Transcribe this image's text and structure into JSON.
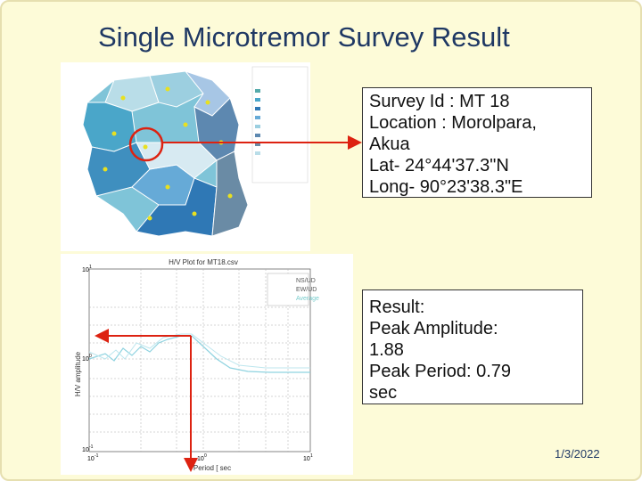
{
  "header": {
    "title": "Single Microtremor Survey Result"
  },
  "survey_box": {
    "lines": [
      "Survey Id : MT 18",
      "Location : Morolpara,",
      "Akua",
      "Lat-  24°44'37.3\"N",
      "Long-  90°23'38.3\"E"
    ]
  },
  "result_box": {
    "lines": [
      "Result:",
      "Peak Amplitude:",
      "1.88",
      "Peak Period: 0.79",
      "sec"
    ]
  },
  "plot": {
    "title": "H/V Plot for MT18.csv",
    "y_label": "H/V amplitude",
    "x_label": "Period [ sec",
    "legend": [
      "NS/UD",
      "EW/UD",
      "Average"
    ],
    "y_ticks": [
      {
        "base": "10",
        "exp": "1"
      },
      {
        "base": "10",
        "exp": "0"
      },
      {
        "base": "10",
        "exp": "-1"
      }
    ],
    "x_ticks": [
      {
        "base": "10",
        "exp": "-1"
      },
      {
        "base": "10",
        "exp": "0"
      },
      {
        "base": "10",
        "exp": "1"
      }
    ]
  },
  "footer": {
    "date": "1/3/2022"
  }
}
